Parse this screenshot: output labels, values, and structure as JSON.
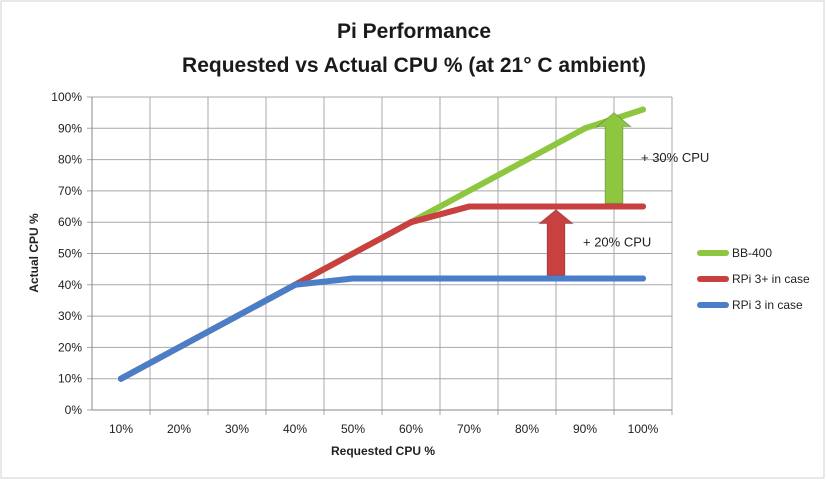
{
  "chart_data": {
    "type": "line",
    "title": "Pi Performance",
    "subtitle": "Requested vs Actual CPU % (at 21° C ambient)",
    "xlabel": "Requested CPU %",
    "ylabel": "Actual CPU %",
    "categories": [
      "10%",
      "20%",
      "30%",
      "40%",
      "50%",
      "60%",
      "70%",
      "80%",
      "90%",
      "100%"
    ],
    "x": [
      10,
      20,
      30,
      40,
      50,
      60,
      70,
      80,
      90,
      100
    ],
    "xlim": [
      5,
      105
    ],
    "ylim": [
      0,
      100
    ],
    "yticks": [
      0,
      10,
      20,
      30,
      40,
      50,
      60,
      70,
      80,
      90,
      100
    ],
    "ytick_labels": [
      "0%",
      "10%",
      "20%",
      "30%",
      "40%",
      "50%",
      "60%",
      "70%",
      "80%",
      "90%",
      "100%"
    ],
    "grid": true,
    "legend_position": "right",
    "series": [
      {
        "name": "BB-400",
        "color": "#8dc63f",
        "values": [
          10,
          20,
          30,
          40,
          50,
          60,
          70,
          80,
          90,
          96
        ]
      },
      {
        "name": "RPi 3+ in case",
        "color": "#c94040",
        "values": [
          10,
          20,
          30,
          40,
          50,
          60,
          65,
          65,
          65,
          65
        ]
      },
      {
        "name": "RPi 3 in case",
        "color": "#4a7ec8",
        "values": [
          10,
          20,
          30,
          40,
          42,
          42,
          42,
          42,
          42,
          42
        ]
      }
    ],
    "annotations": [
      {
        "text": "+ 30% CPU",
        "x": 95,
        "from": 66,
        "to": 95,
        "color": "#8dc63f"
      },
      {
        "text": "+ 20% CPU",
        "x": 85,
        "from": 43,
        "to": 64,
        "color": "#c94040"
      }
    ]
  }
}
